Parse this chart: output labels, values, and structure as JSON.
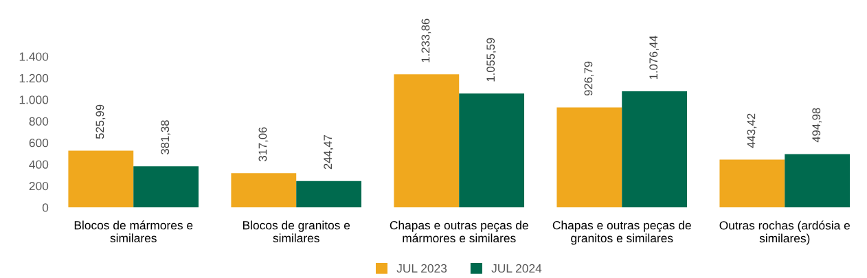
{
  "chart_data": {
    "type": "bar",
    "categories": [
      "Blocos de mármores e similares",
      "Blocos de granitos e similares",
      "Chapas e outras peças de mármores e similares",
      "Chapas e outras peças de granitos e similares",
      "Outras rochas (ardósia e similares)"
    ],
    "series": [
      {
        "name": "JUL 2023",
        "color": "#f0a81e",
        "values": [
          525.99,
          317.06,
          1233.86,
          926.79,
          443.42
        ],
        "value_labels": [
          "525,99",
          "317,06",
          "1.233,86",
          "926,79",
          "443,42"
        ]
      },
      {
        "name": "JUL 2024",
        "color": "#006a4e",
        "values": [
          381.38,
          244.47,
          1055.59,
          1076.44,
          494.98
        ],
        "value_labels": [
          "381,38",
          "244,47",
          "1.055,59",
          "1.076,44",
          "494,98"
        ]
      }
    ],
    "ylim": [
      0,
      1400
    ],
    "yticks": [
      0,
      200,
      400,
      600,
      800,
      {
        "value": 1000,
        "label": "1.000"
      },
      {
        "value": 1200,
        "label": "1.200"
      },
      {
        "value": 1400,
        "label": "1.400"
      }
    ],
    "grid": false,
    "legend": "bottom"
  }
}
